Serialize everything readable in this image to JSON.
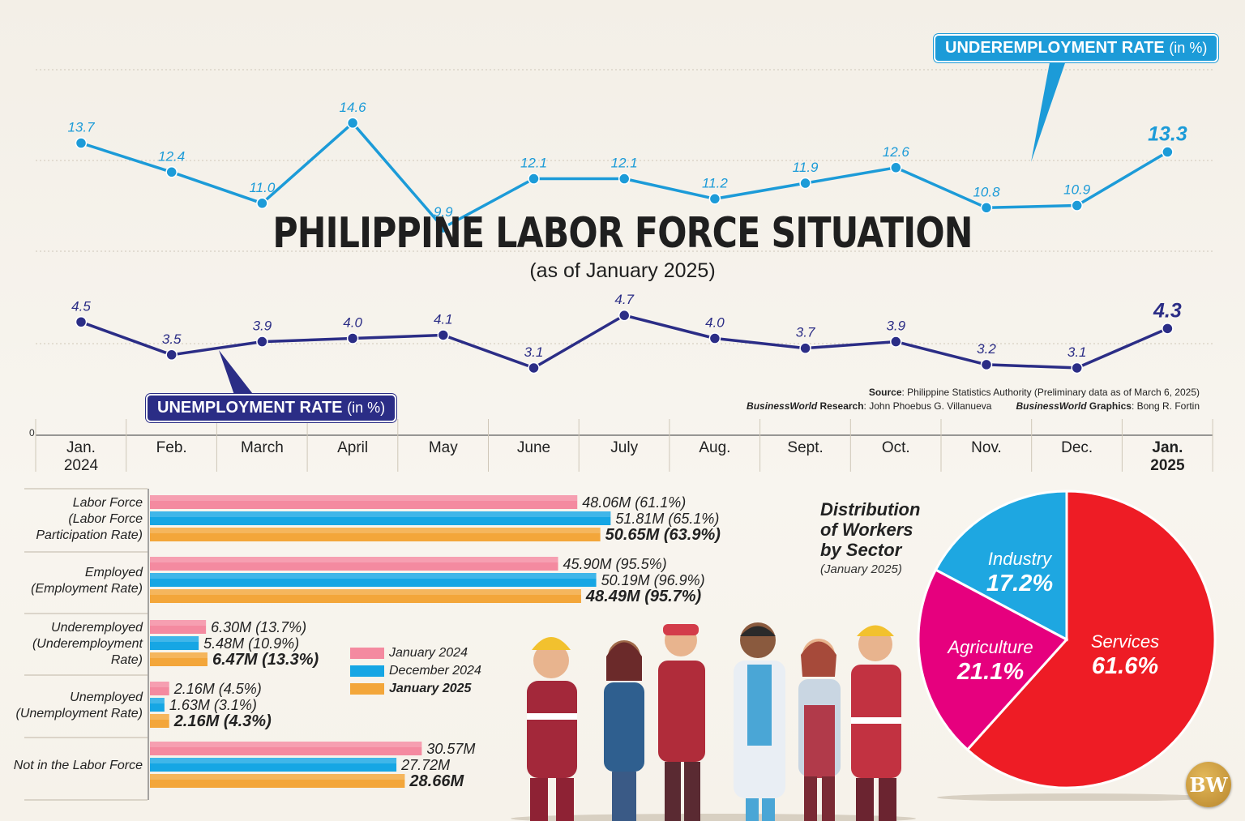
{
  "title": "PHILIPPINE LABOR FORCE SITUATION",
  "subtitle": "(as of January 2025)",
  "line_chart": {
    "type": "line",
    "months": [
      {
        "line1": "Jan.",
        "line2": "2024",
        "bold": false
      },
      {
        "line1": "Feb.",
        "line2": "",
        "bold": false
      },
      {
        "line1": "March",
        "line2": "",
        "bold": false
      },
      {
        "line1": "April",
        "line2": "",
        "bold": false
      },
      {
        "line1": "May",
        "line2": "",
        "bold": false
      },
      {
        "line1": "June",
        "line2": "",
        "bold": false
      },
      {
        "line1": "July",
        "line2": "",
        "bold": false
      },
      {
        "line1": "Aug.",
        "line2": "",
        "bold": false
      },
      {
        "line1": "Sept.",
        "line2": "",
        "bold": false
      },
      {
        "line1": "Oct.",
        "line2": "",
        "bold": false
      },
      {
        "line1": "Nov.",
        "line2": "",
        "bold": false
      },
      {
        "line1": "Dec.",
        "line2": "",
        "bold": false
      },
      {
        "line1": "Jan.",
        "line2": "2025",
        "bold": true
      }
    ],
    "zero_label": "0",
    "series": [
      {
        "name": "UNDEREMPLOYMENT RATE",
        "name_unit": "(in %)",
        "color": "#1c9bd8",
        "values": [
          13.7,
          12.4,
          11.0,
          14.6,
          9.9,
          12.1,
          12.1,
          11.2,
          11.9,
          12.6,
          10.8,
          10.9,
          13.3
        ],
        "labels": [
          "13.7",
          "12.4",
          "11.0",
          "14.6",
          "9.9",
          "12.1",
          "12.1",
          "11.2",
          "11.9",
          "12.6",
          "10.8",
          "10.9",
          "13.3"
        ]
      },
      {
        "name": "UNEMPLOYMENT RATE",
        "name_unit": "(in %)",
        "color": "#2b2d86",
        "values": [
          4.5,
          3.5,
          3.9,
          4.0,
          4.1,
          3.1,
          4.7,
          4.0,
          3.7,
          3.9,
          3.2,
          3.1,
          4.3
        ],
        "labels": [
          "4.5",
          "3.5",
          "3.9",
          "4.0",
          "4.1",
          "3.1",
          "4.7",
          "4.0",
          "3.7",
          "3.9",
          "3.2",
          "3.1",
          "4.3"
        ]
      }
    ]
  },
  "source": {
    "source_label": "Source",
    "source_text": ": Philippine Statistics Authority (Preliminary data as of March 6, 2025)",
    "research_label": "BusinessWorld",
    "research_word": " Research",
    "research_text": ": John Phoebus G. Villanueva",
    "graphics_label": "BusinessWorld",
    "graphics_word": " Graphics",
    "graphics_text": ": Bong R. Fortin"
  },
  "bar_chart": {
    "type": "bar",
    "orientation": "horizontal",
    "series_names": [
      "January 2024",
      "December 2024",
      "January 2025"
    ],
    "series_colors": [
      "#f48aa0",
      "#16a6e4",
      "#f3a63a"
    ],
    "groups": [
      {
        "label_lines": [
          "Labor Force",
          "(Labor Force",
          "Participation Rate)"
        ],
        "values": [
          48.06,
          51.81,
          50.65
        ],
        "labels": [
          "48.06M",
          "51.81M",
          "50.65M"
        ],
        "rates": [
          "(61.1%)",
          "(65.1%)",
          "(63.9%)"
        ]
      },
      {
        "label_lines": [
          "Employed",
          "(Employment Rate)"
        ],
        "values": [
          45.9,
          50.19,
          48.49
        ],
        "labels": [
          "45.90M",
          "50.19M",
          "48.49M"
        ],
        "rates": [
          "(95.5%)",
          "(96.9%)",
          "(95.7%)"
        ]
      },
      {
        "label_lines": [
          "Underemployed",
          "(Underemployment",
          "Rate)"
        ],
        "values": [
          6.3,
          5.48,
          6.47
        ],
        "labels": [
          "6.30M",
          "5.48M",
          "6.47M"
        ],
        "rates": [
          "(13.7%)",
          "(10.9%)",
          "(13.3%)"
        ]
      },
      {
        "label_lines": [
          "Unemployed",
          "(Unemployment Rate)"
        ],
        "values": [
          2.16,
          1.63,
          2.16
        ],
        "labels": [
          "2.16M",
          "1.63M",
          "2.16M"
        ],
        "rates": [
          "(4.5%)",
          "(3.1%)",
          "(4.3%)"
        ]
      },
      {
        "label_lines": [
          "Not in the Labor Force"
        ],
        "values": [
          30.57,
          27.72,
          28.66
        ],
        "labels": [
          "30.57M",
          "27.72M",
          "28.66M"
        ],
        "rates": [
          "",
          "",
          ""
        ]
      }
    ]
  },
  "pie_chart": {
    "type": "pie",
    "title_lines": [
      "Distribution",
      "of Workers",
      "by Sector"
    ],
    "subtitle": "(January 2025)",
    "slices": [
      {
        "name": "Services",
        "value": 61.6,
        "label": "61.6%",
        "color": "#ee1c25"
      },
      {
        "name": "Agriculture",
        "value": 21.1,
        "label": "21.1%",
        "color": "#e6007e"
      },
      {
        "name": "Industry",
        "value": 17.2,
        "label": "17.2%",
        "color": "#1ea7e1"
      }
    ]
  },
  "logo_text": "BW",
  "chart_data": [
    {
      "type": "line",
      "categories": [
        "Jan. 2024",
        "Feb.",
        "March",
        "April",
        "May",
        "June",
        "July",
        "Aug.",
        "Sept.",
        "Oct.",
        "Nov.",
        "Dec.",
        "Jan. 2025"
      ],
      "series": [
        {
          "name": "UNDEREMPLOYMENT RATE (in %)",
          "values": [
            13.7,
            12.4,
            11.0,
            14.6,
            9.9,
            12.1,
            12.1,
            11.2,
            11.9,
            12.6,
            10.8,
            10.9,
            13.3
          ]
        },
        {
          "name": "UNEMPLOYMENT RATE (in %)",
          "values": [
            4.5,
            3.5,
            3.9,
            4.0,
            4.1,
            3.1,
            4.7,
            4.0,
            3.7,
            3.9,
            3.2,
            3.1,
            4.3
          ]
        }
      ],
      "title": "PHILIPPINE LABOR FORCE SITUATION",
      "subtitle": "(as of January 2025)"
    },
    {
      "type": "bar",
      "categories": [
        "Labor Force (Labor Force Participation Rate)",
        "Employed (Employment Rate)",
        "Underemployed (Underemployment Rate)",
        "Unemployed (Unemployment Rate)",
        "Not in the Labor Force"
      ],
      "series": [
        {
          "name": "January 2024",
          "values": [
            48.06,
            45.9,
            6.3,
            2.16,
            30.57
          ]
        },
        {
          "name": "December 2024",
          "values": [
            51.81,
            50.19,
            5.48,
            1.63,
            27.72
          ]
        },
        {
          "name": "January 2025",
          "values": [
            50.65,
            48.49,
            6.47,
            2.16,
            28.66
          ]
        }
      ]
    },
    {
      "type": "pie",
      "title": "Distribution of Workers by Sector",
      "subtitle": "(January 2025)",
      "categories": [
        "Services",
        "Agriculture",
        "Industry"
      ],
      "values": [
        61.6,
        21.1,
        17.2
      ]
    }
  ]
}
